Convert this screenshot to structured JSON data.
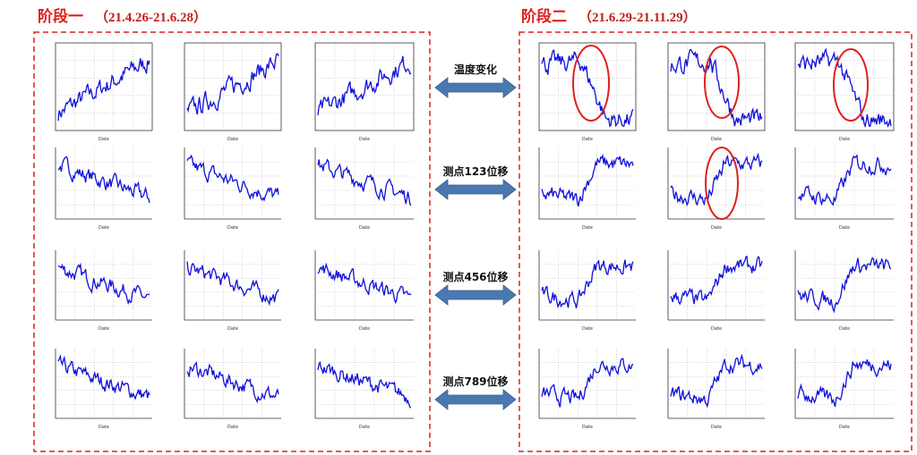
{
  "stage1": {
    "name": "阶段一",
    "dates": "（21.4.26-21.6.28）"
  },
  "stage2": {
    "name": "阶段二",
    "dates": "（21.6.29-21.11.29）"
  },
  "arrows": [
    "温度变化",
    "测点123位移",
    "测点456位移",
    "测点789位移"
  ],
  "x_label": "Date"
}
